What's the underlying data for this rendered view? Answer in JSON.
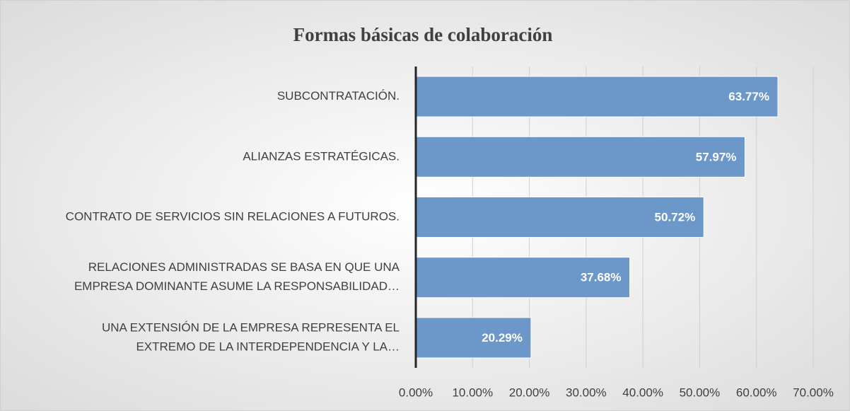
{
  "chart_data": {
    "type": "bar",
    "orientation": "horizontal",
    "title": "Formas básicas de colaboración",
    "categories": [
      [
        "SUBCONTRATACIÓN."
      ],
      [
        "ALIANZAS ESTRATÉGICAS."
      ],
      [
        "CONTRATO DE SERVICIOS SIN RELACIONES A FUTUROS."
      ],
      [
        "RELACIONES ADMINISTRADAS SE BASA EN QUE UNA",
        "EMPRESA DOMINANTE ASUME LA RESPONSABILIDAD…"
      ],
      [
        "UNA EXTENSIÓN DE LA EMPRESA REPRESENTA EL",
        "EXTREMO DE LA INTERDEPENDENCIA Y LA…"
      ]
    ],
    "values": [
      63.77,
      57.97,
      50.72,
      37.68,
      20.29
    ],
    "value_labels": [
      "63.77%",
      "57.97%",
      "50.72%",
      "37.68%",
      "20.29%"
    ],
    "color": "#6b97c9",
    "xlim": [
      0,
      70
    ],
    "xticks": [
      {
        "value": 0,
        "label": "0.00%"
      },
      {
        "value": 10,
        "label": "10.00%"
      },
      {
        "value": 20,
        "label": "20.00%"
      },
      {
        "value": 30,
        "label": "30.00%"
      },
      {
        "value": 40,
        "label": "40.00%"
      },
      {
        "value": 50,
        "label": "50.00%"
      },
      {
        "value": 60,
        "label": "60.00%"
      },
      {
        "value": 70,
        "label": "70.00%"
      }
    ],
    "grid": true
  }
}
